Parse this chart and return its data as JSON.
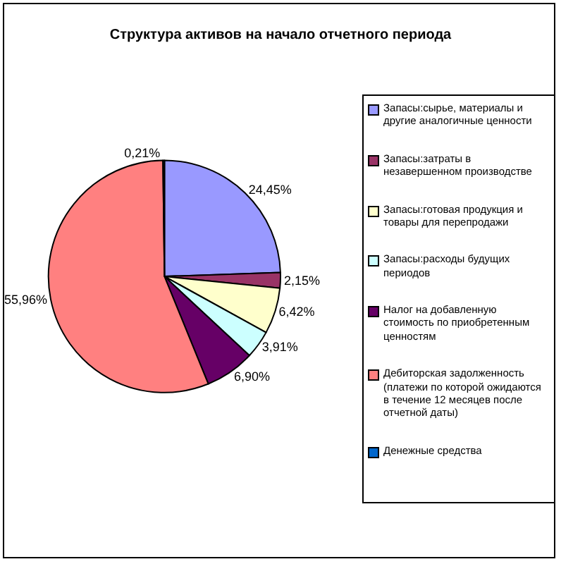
{
  "chart_data": {
    "type": "pie",
    "title": "Структура активов на начало отчетного периода",
    "categories": [
      "Запасы:сырье, материалы и другие аналогичные ценности",
      "Запасы:затраты в незавершенном производстве",
      "Запасы:готовая продукция и товары для перепродажи",
      "Запасы:расходы будущих периодов",
      "Налог на добавленную стоимость по приобретенным ценностям",
      "Дебиторская задолженность (платежи по которой ожидаются в течение 12 месяцев после отчетной даты)",
      "Денежные средства"
    ],
    "values": [
      24.45,
      2.15,
      6.42,
      3.91,
      6.9,
      55.96,
      0.21
    ],
    "colors": [
      "#9999ff",
      "#993366",
      "#ffffcc",
      "#ccffff",
      "#660066",
      "#ff8080",
      "#0066cc"
    ],
    "value_labels": [
      "24,45%",
      "2,15%",
      "6,42%",
      "3,91%",
      "6,90%",
      "55,96%",
      "0,21%"
    ],
    "legend": "right"
  }
}
